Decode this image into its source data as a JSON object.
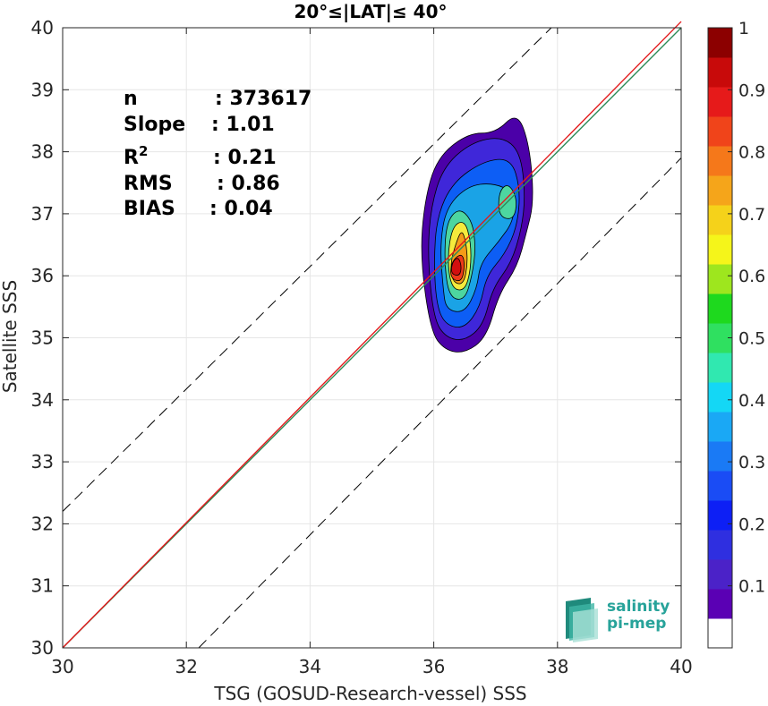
{
  "chart_data": {
    "type": "heatmap",
    "title": "20°≤|LAT|≤ 40°",
    "xlabel": "TSG (GOSUD-Research-vessel) SSS",
    "ylabel": "Satellite SSS",
    "xlim": [
      30,
      40
    ],
    "ylim": [
      30,
      40
    ],
    "x_ticks": [
      "30",
      "32",
      "34",
      "36",
      "38",
      "40"
    ],
    "y_ticks": [
      "30",
      "31",
      "32",
      "33",
      "34",
      "35",
      "36",
      "37",
      "38",
      "39",
      "40"
    ],
    "grid": true,
    "stats": [
      {
        "label": "n",
        "value": ": 373617"
      },
      {
        "label": "Slope",
        "value": ": 1.01"
      },
      {
        "label": "R",
        "sup": "2",
        "value": ": 0.21"
      },
      {
        "label": "RMS",
        "value": ": 0.86"
      },
      {
        "label": "BIAS",
        "value": ": 0.04"
      }
    ],
    "lines": [
      {
        "name": "one-to-one",
        "color": "#2e8b57",
        "points": [
          [
            30,
            30
          ],
          [
            40,
            40
          ]
        ]
      },
      {
        "name": "regression",
        "color": "#e31a1c",
        "points": [
          [
            30,
            30
          ],
          [
            40,
            40.1
          ]
        ]
      },
      {
        "name": "upper-bound",
        "color": "#000000",
        "dash": true,
        "points": [
          [
            30,
            32.2
          ],
          [
            37.9,
            40
          ]
        ]
      },
      {
        "name": "lower-bound",
        "color": "#000000",
        "dash": true,
        "points": [
          [
            32.2,
            30
          ],
          [
            40,
            37.9
          ]
        ]
      }
    ],
    "contours": [
      {
        "level": 0.05,
        "color": "#4b00a8",
        "points": [
          [
            36.18,
            34.8
          ],
          [
            36.5,
            34.75
          ],
          [
            36.85,
            35.0
          ],
          [
            37.05,
            35.7
          ],
          [
            37.35,
            36.15
          ],
          [
            37.5,
            36.7
          ],
          [
            37.62,
            37.2
          ],
          [
            37.55,
            38.1
          ],
          [
            37.35,
            38.65
          ],
          [
            37.0,
            38.3
          ],
          [
            36.55,
            38.3
          ],
          [
            36.05,
            37.9
          ],
          [
            35.85,
            37.2
          ],
          [
            35.78,
            36.3
          ],
          [
            35.95,
            35.1
          ]
        ]
      },
      {
        "level": 0.15,
        "color": "#3f27d9",
        "points": [
          [
            36.2,
            35.0
          ],
          [
            36.5,
            34.95
          ],
          [
            36.8,
            35.2
          ],
          [
            36.95,
            35.8
          ],
          [
            37.25,
            36.2
          ],
          [
            37.42,
            36.75
          ],
          [
            37.48,
            37.3
          ],
          [
            37.4,
            38.0
          ],
          [
            37.1,
            38.25
          ],
          [
            36.6,
            38.15
          ],
          [
            36.15,
            37.75
          ],
          [
            35.95,
            37.1
          ],
          [
            35.9,
            36.3
          ],
          [
            36.0,
            35.3
          ]
        ]
      },
      {
        "level": 0.25,
        "color": "#0d5ef5",
        "points": [
          [
            36.2,
            35.2
          ],
          [
            36.5,
            35.15
          ],
          [
            36.75,
            35.5
          ],
          [
            36.85,
            36.0
          ],
          [
            37.15,
            36.35
          ],
          [
            37.35,
            36.8
          ],
          [
            37.4,
            37.4
          ],
          [
            37.25,
            37.9
          ],
          [
            36.8,
            37.85
          ],
          [
            36.3,
            37.5
          ],
          [
            36.05,
            36.95
          ],
          [
            36.0,
            36.2
          ],
          [
            36.05,
            35.5
          ]
        ]
      },
      {
        "level": 0.35,
        "color": "#1aa3e6",
        "points": [
          [
            36.2,
            35.45
          ],
          [
            36.5,
            35.4
          ],
          [
            36.7,
            35.8
          ],
          [
            36.75,
            36.2
          ],
          [
            37.05,
            36.55
          ],
          [
            37.3,
            36.9
          ],
          [
            37.3,
            37.35
          ],
          [
            36.95,
            37.5
          ],
          [
            36.55,
            37.45
          ],
          [
            36.2,
            37.1
          ],
          [
            36.1,
            36.5
          ],
          [
            36.15,
            35.8
          ]
        ]
      },
      {
        "level": 0.45,
        "color": "#4dd6a0",
        "points": [
          [
            36.25,
            35.65
          ],
          [
            36.5,
            35.6
          ],
          [
            36.62,
            36.0
          ],
          [
            36.68,
            36.45
          ],
          [
            36.62,
            36.9
          ],
          [
            36.4,
            37.1
          ],
          [
            36.2,
            36.85
          ],
          [
            36.17,
            36.2
          ]
        ]
      },
      {
        "level": 0.45,
        "color": "#4dd6a0",
        "points": [
          [
            37.05,
            36.95
          ],
          [
            37.3,
            36.9
          ],
          [
            37.35,
            37.25
          ],
          [
            37.2,
            37.5
          ],
          [
            37.05,
            37.35
          ]
        ]
      },
      {
        "level": 0.6,
        "color": "#f5ea3c",
        "points": [
          [
            36.28,
            35.8
          ],
          [
            36.5,
            35.75
          ],
          [
            36.6,
            36.1
          ],
          [
            36.6,
            36.55
          ],
          [
            36.5,
            36.9
          ],
          [
            36.3,
            36.8
          ],
          [
            36.22,
            36.3
          ]
        ]
      },
      {
        "level": 0.7,
        "color": "#f59b17",
        "points": [
          [
            36.3,
            35.9
          ],
          [
            36.48,
            35.85
          ],
          [
            36.55,
            36.2
          ],
          [
            36.52,
            36.55
          ],
          [
            36.45,
            36.75
          ],
          [
            36.35,
            36.5
          ],
          [
            36.27,
            36.2
          ]
        ]
      },
      {
        "level": 0.85,
        "color": "#ee3a1a",
        "points": [
          [
            36.28,
            35.95
          ],
          [
            36.45,
            35.9
          ],
          [
            36.5,
            36.15
          ],
          [
            36.47,
            36.35
          ],
          [
            36.35,
            36.3
          ],
          [
            36.27,
            36.15
          ]
        ]
      },
      {
        "level": 0.95,
        "color": "#d10f0f",
        "points": [
          [
            36.3,
            36.02
          ],
          [
            36.42,
            36.0
          ],
          [
            36.45,
            36.15
          ],
          [
            36.4,
            36.3
          ],
          [
            36.32,
            36.25
          ],
          [
            36.28,
            36.12
          ]
        ]
      }
    ],
    "colorbar": {
      "ticks": [
        "0.1",
        "0.2",
        "0.3",
        "0.4",
        "0.5",
        "0.6",
        "0.7",
        "0.8",
        "0.9",
        "1"
      ],
      "colors": [
        "#ffffff",
        "#5a00b4",
        "#4b22c8",
        "#2f2fe0",
        "#0d1ff5",
        "#1a4cf5",
        "#1a7af5",
        "#1aa8f5",
        "#14d7f5",
        "#30e8b0",
        "#2fe060",
        "#1ed91e",
        "#9ee61e",
        "#f5f51a",
        "#f5d21a",
        "#f5a51a",
        "#f5781a",
        "#f0441a",
        "#e61a1a",
        "#c80a0a",
        "#8c0000"
      ]
    },
    "logo": {
      "line1": "salinity",
      "line2": "pi-mep"
    }
  }
}
